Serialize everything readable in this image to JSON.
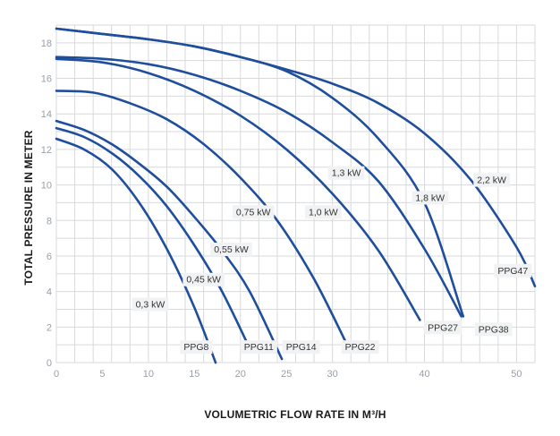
{
  "chart_data": {
    "type": "line",
    "xlabel": "VOLUMETRIC FLOW RATE IN M³/H",
    "ylabel": "TOTAL PRESSURE IN METER",
    "xlim": [
      0,
      52
    ],
    "ylim": [
      0,
      19
    ],
    "x_ticks": [
      "0",
      "5",
      "10",
      "15",
      "20",
      "25",
      "30",
      "40",
      "50"
    ],
    "x_tick_values": [
      0,
      5,
      10,
      15,
      20,
      25,
      30,
      40,
      50
    ],
    "y_ticks": [
      "0",
      "2",
      "4",
      "6",
      "8",
      "10",
      "12",
      "14",
      "16",
      "18"
    ],
    "y_tick_values": [
      0,
      2,
      4,
      6,
      8,
      10,
      12,
      14,
      16,
      18
    ],
    "grid": true,
    "series": [
      {
        "name": "PPG8",
        "power": "0,3 kW",
        "x": [
          0,
          3,
          6,
          9,
          12,
          15,
          17.3
        ],
        "y": [
          12.6,
          12.0,
          10.9,
          9.0,
          6.4,
          3.1,
          0
        ]
      },
      {
        "name": "PPG11",
        "power": "0,45 kW",
        "x": [
          0,
          3,
          6,
          9,
          12,
          15,
          18,
          21
        ],
        "y": [
          13.2,
          12.7,
          11.8,
          10.5,
          8.8,
          6.6,
          4.0,
          0.8
        ]
      },
      {
        "name": "PPG14",
        "power": "0,55 kW",
        "x": [
          0,
          3,
          6,
          9,
          12,
          15,
          18,
          21,
          24.5
        ],
        "y": [
          13.6,
          13.1,
          12.3,
          11.2,
          9.9,
          8.2,
          6.3,
          4.0,
          0.2
        ]
      },
      {
        "name": "PPG22",
        "power": "0,75 kW",
        "x": [
          0,
          4,
          8,
          12,
          16,
          20,
          24,
          28,
          31.5
        ],
        "y": [
          15.3,
          15.2,
          14.6,
          13.7,
          12.3,
          10.4,
          8.0,
          4.7,
          1.1
        ]
      },
      {
        "name": "PPG27",
        "power": "1,0 kW",
        "x": [
          0,
          5,
          10,
          15,
          20,
          25,
          30,
          35,
          39.5
        ],
        "y": [
          17.1,
          16.9,
          16.3,
          15.3,
          13.9,
          12.0,
          9.5,
          6.3,
          2.4
        ]
      },
      {
        "name": "PPG38",
        "power": "1,3 kW",
        "x": [
          0,
          5,
          10,
          15,
          20,
          25,
          30,
          35,
          40,
          44
        ],
        "y": [
          17.2,
          17.1,
          16.8,
          16.2,
          15.3,
          14.1,
          12.4,
          10.2,
          6.4,
          2.6
        ]
      },
      {
        "name": "PPG38",
        "power": "1,8 kW",
        "x": [
          0,
          5,
          10,
          15,
          20,
          25,
          30,
          35,
          40,
          44.2
        ],
        "y": [
          18.8,
          18.5,
          18.2,
          17.8,
          17.2,
          16.4,
          14.9,
          12.6,
          9.0,
          2.6
        ]
      },
      {
        "name": "PPG47",
        "power": "2,2 kW",
        "x": [
          0,
          5,
          10,
          15,
          20,
          25,
          30,
          35,
          40,
          45,
          50,
          52
        ],
        "y": [
          18.8,
          18.5,
          18.2,
          17.8,
          17.2,
          16.5,
          15.7,
          14.6,
          12.9,
          10.3,
          6.5,
          4.3
        ]
      }
    ],
    "power_labels": [
      {
        "text": "0,3 kW",
        "x": 10.2,
        "y": 3.3
      },
      {
        "text": "0,45 kW",
        "x": 16.0,
        "y": 4.7
      },
      {
        "text": "0,55 kW",
        "x": 19.0,
        "y": 6.4
      },
      {
        "text": "0,75 kW",
        "x": 21.4,
        "y": 8.5
      },
      {
        "text": "1,0 kW",
        "x": 29.0,
        "y": 8.5
      },
      {
        "text": "1,3 kW",
        "x": 31.5,
        "y": 10.7
      },
      {
        "text": "1,8 kW",
        "x": 40.6,
        "y": 9.3
      },
      {
        "text": "2,2 kW",
        "x": 47.3,
        "y": 10.3
      }
    ],
    "model_labels": [
      {
        "text": "PPG8",
        "x": 15.2,
        "y": 0.9
      },
      {
        "text": "PPG11",
        "x": 22.0,
        "y": 0.9
      },
      {
        "text": "PPG14",
        "x": 26.6,
        "y": 0.9
      },
      {
        "text": "PPG22",
        "x": 33.0,
        "y": 0.9
      },
      {
        "text": "PPG27",
        "x": 42.0,
        "y": 2.0
      },
      {
        "text": "PPG38",
        "x": 47.5,
        "y": 1.9
      },
      {
        "text": "PPG47",
        "x": 49.6,
        "y": 5.2
      }
    ]
  },
  "colors": {
    "curve": "#1f4e9c",
    "grid": "#d7d9dc",
    "tick_label": "#9aa0a6",
    "label_bg": "#f1f2f3",
    "label_text": "#333333",
    "axis_title": "#1a1a1a"
  }
}
